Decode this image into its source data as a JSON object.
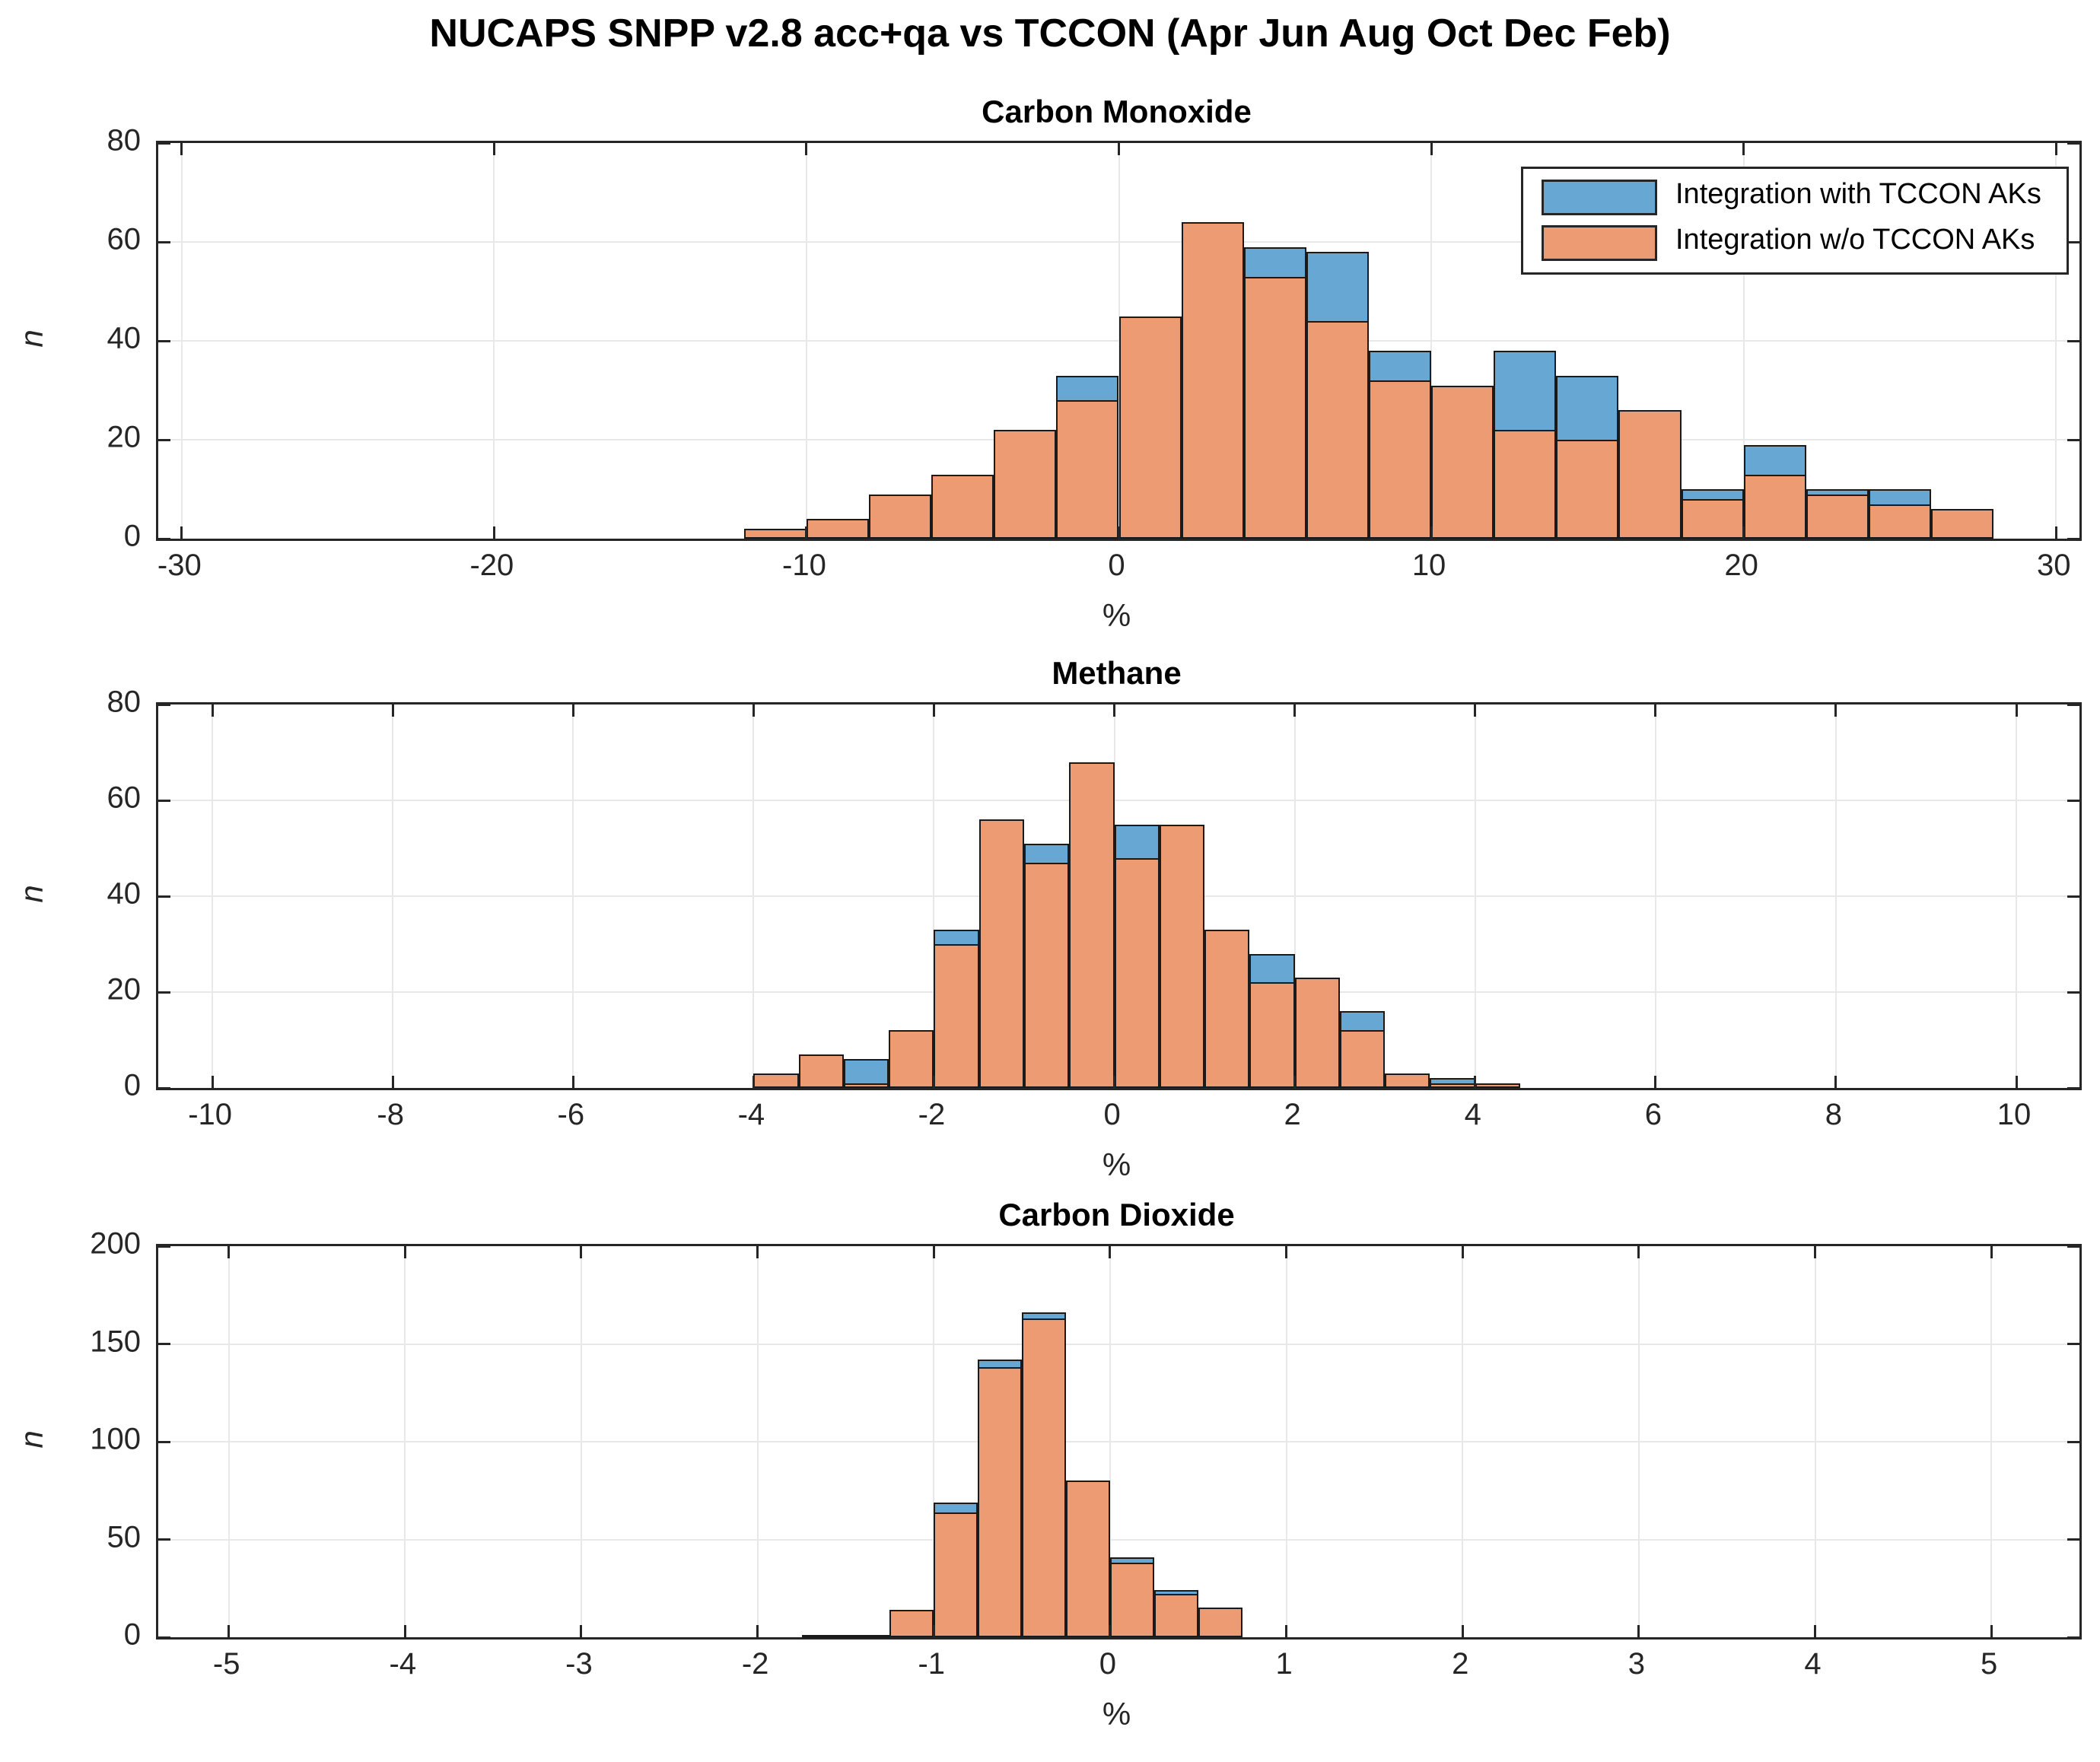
{
  "figure": {
    "title": "NUCAPS SNPP v2.8 acc+qa vs TCCON (Apr Jun Aug Oct Dec Feb)"
  },
  "colors": {
    "with_aks_blue": "#67A7D4",
    "without_aks_orange": "#EC9B72",
    "bar_edge": "#1a1a1a",
    "axis": "#262626",
    "grid": "#e8e8e8",
    "background": "#ffffff"
  },
  "legend": {
    "position": "top-right-of-first-chart",
    "items": [
      {
        "label": "Integration with TCCON AKs",
        "color": "#67A7D4"
      },
      {
        "label": "Integration w/o TCCON AKs",
        "color": "#EC9B72"
      }
    ]
  },
  "chart_data": [
    {
      "type": "bar",
      "title": "Carbon Monoxide",
      "xlabel": "%",
      "ylabel": "n",
      "bins": {
        "start": -12,
        "width": 2
      },
      "xlim": [
        -30.75,
        30.75
      ],
      "ylim": [
        0,
        80
      ],
      "xticks": [
        -30,
        -20,
        -10,
        0,
        10,
        20,
        30
      ],
      "yticks": [
        0,
        20,
        40,
        60,
        80
      ],
      "grid": true,
      "series": [
        {
          "name": "Integration with TCCON AKs",
          "color": "#67A7D4",
          "values": [
            2,
            4,
            9,
            13,
            22,
            33,
            45,
            64,
            59,
            58,
            38,
            31,
            38,
            33,
            26,
            10,
            19,
            10,
            10,
            6
          ]
        },
        {
          "name": "Integration w/o TCCON AKs",
          "color": "#EC9B72",
          "values": [
            2,
            4,
            9,
            13,
            22,
            28,
            45,
            64,
            53,
            44,
            32,
            31,
            22,
            20,
            26,
            8,
            13,
            9,
            7,
            6
          ]
        }
      ]
    },
    {
      "type": "bar",
      "title": "Methane",
      "xlabel": "%",
      "ylabel": "n",
      "bins": {
        "start": -4,
        "width": 0.5
      },
      "xlim": [
        -10.6,
        10.7
      ],
      "ylim": [
        0,
        80
      ],
      "xticks": [
        -10,
        -8,
        -6,
        -4,
        -2,
        0,
        2,
        4,
        6,
        8,
        10
      ],
      "yticks": [
        0,
        20,
        40,
        60,
        80
      ],
      "grid": true,
      "series": [
        {
          "name": "Integration with TCCON AKs",
          "color": "#67A7D4",
          "values": [
            3,
            7,
            6,
            12,
            33,
            56,
            51,
            68,
            55,
            55,
            33,
            28,
            23,
            16,
            3,
            2,
            1
          ]
        },
        {
          "name": "Integration w/o TCCON AKs",
          "color": "#EC9B72",
          "values": [
            3,
            7,
            1,
            12,
            30,
            56,
            47,
            68,
            48,
            55,
            33,
            22,
            23,
            12,
            3,
            1,
            1
          ]
        }
      ]
    },
    {
      "type": "bar",
      "title": "Carbon Dioxide",
      "xlabel": "%",
      "ylabel": "n",
      "bins": {
        "start": -1.75,
        "width": 0.25
      },
      "xlim": [
        -5.4,
        5.5
      ],
      "ylim": [
        0,
        200
      ],
      "xticks": [
        -5,
        -4,
        -3,
        -2,
        -1,
        0,
        1,
        2,
        3,
        4,
        5
      ],
      "yticks": [
        0,
        50,
        100,
        150,
        200
      ],
      "grid": true,
      "series": [
        {
          "name": "Integration with TCCON AKs",
          "color": "#67A7D4",
          "values": [
            1,
            1,
            14,
            69,
            142,
            166,
            80,
            41,
            24,
            15
          ]
        },
        {
          "name": "Integration w/o TCCON AKs",
          "color": "#EC9B72",
          "values": [
            1,
            1,
            14,
            64,
            138,
            163,
            80,
            38,
            22,
            15
          ]
        }
      ]
    }
  ]
}
